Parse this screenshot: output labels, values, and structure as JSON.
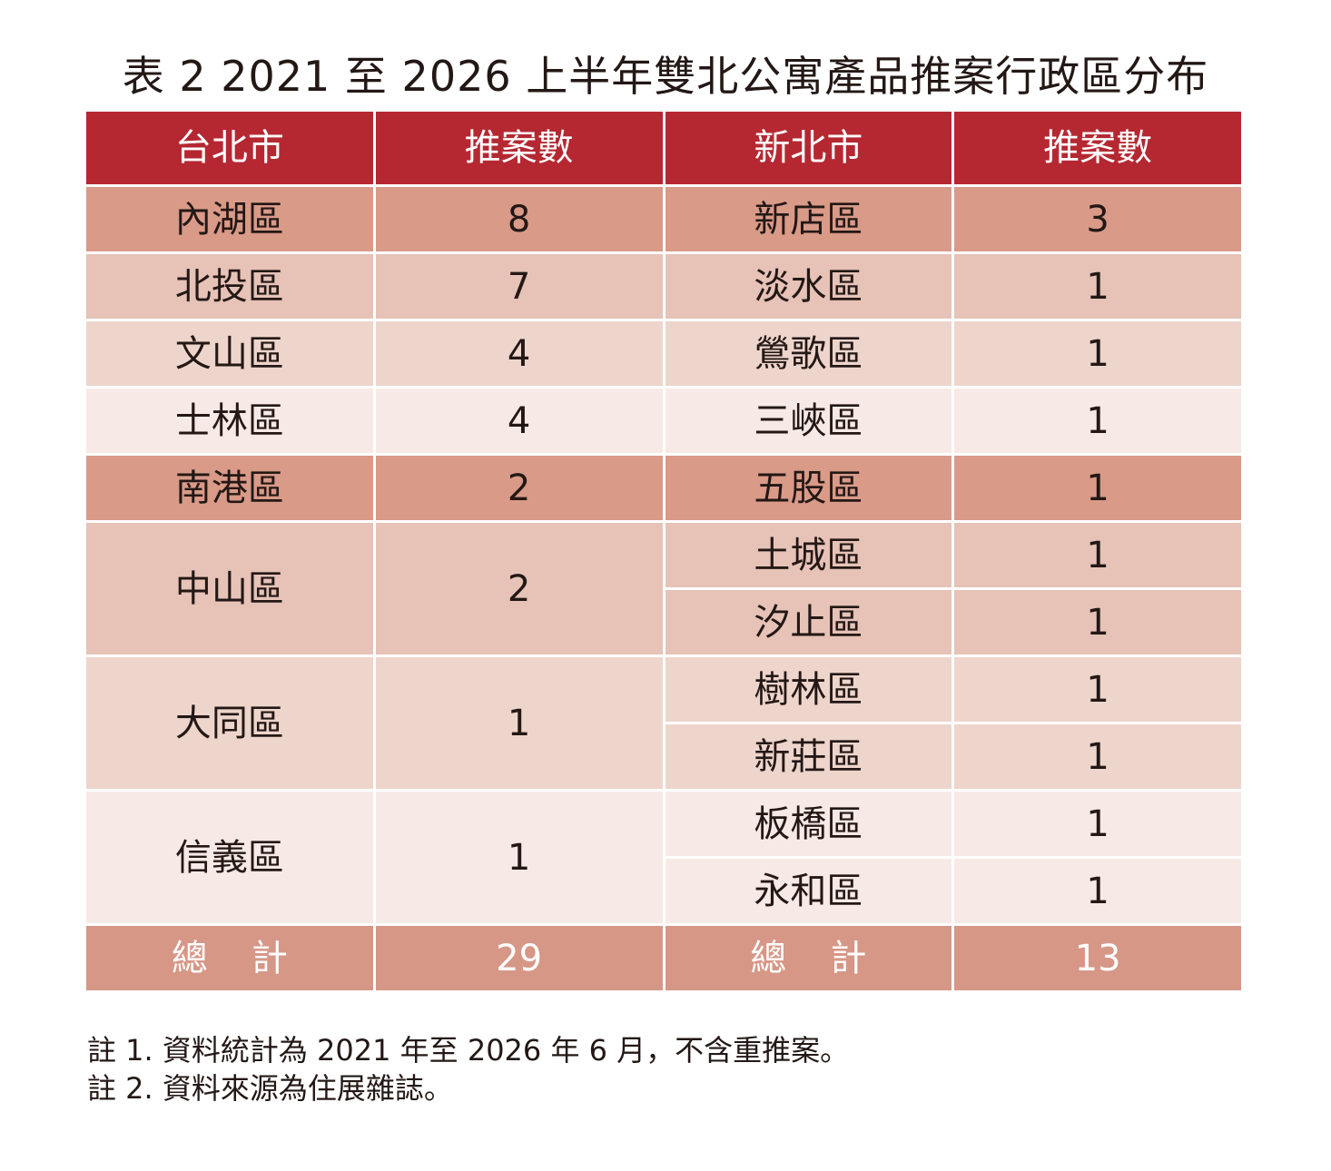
{
  "title": "表 2 2021 至 2026 上半年雙北公寓產品推案行政區分布",
  "header": {
    "taipei": "台北市",
    "taipei_count": "推案數",
    "newtaipei": "新北市",
    "newtaipei_count": "推案數"
  },
  "rows": [
    {
      "tp": "內湖區",
      "tpn": "8",
      "nt": "新店區",
      "ntn": "3",
      "c1": "#d99a88",
      "c2": "#d99a88"
    },
    {
      "tp": "北投區",
      "tpn": "7",
      "nt": "淡水區",
      "ntn": "1",
      "c1": "#e6c2b7",
      "c2": "#e6c2b7"
    },
    {
      "tp": "文山區",
      "tpn": "4",
      "nt": "鶯歌區",
      "ntn": "1",
      "c1": "#eed5cc",
      "c2": "#eed5cc"
    },
    {
      "tp": "士林區",
      "tpn": "4",
      "nt": "三峽區",
      "ntn": "1",
      "c1": "#f7eae6",
      "c2": "#f7eae6"
    },
    {
      "tp": "南港區",
      "tpn": "2",
      "nt": "五股區",
      "ntn": "1",
      "c1": "#d99a88",
      "c2": "#d99a88"
    },
    {
      "tp": "中山區",
      "tpn": "2",
      "nt": "土城區",
      "ntn": "1",
      "span": 2,
      "c1": "#e6c2b7",
      "c2": "#e6c2b7"
    },
    {
      "nt": "汐止區",
      "ntn": "1",
      "c2": "#e6c2b7"
    },
    {
      "tp": "大同區",
      "tpn": "1",
      "nt": "樹林區",
      "ntn": "1",
      "span": 2,
      "c1": "#eed5cc",
      "c2": "#eed5cc"
    },
    {
      "nt": "新莊區",
      "ntn": "1",
      "c2": "#eed5cc"
    },
    {
      "tp": "信義區",
      "tpn": "1",
      "nt": "板橋區",
      "ntn": "1",
      "span": 2,
      "c1": "#f7eae6",
      "c2": "#f7eae6"
    },
    {
      "nt": "永和區",
      "ntn": "1",
      "c2": "#f7eae6"
    }
  ],
  "total": {
    "label": "總計",
    "taipei": "29",
    "newtaipei": "13"
  },
  "notes": [
    "註 1. 資料統計為 2021 年至 2026 年 6 月，不含重推案。",
    "註 2. 資料來源為住展雜誌。"
  ]
}
